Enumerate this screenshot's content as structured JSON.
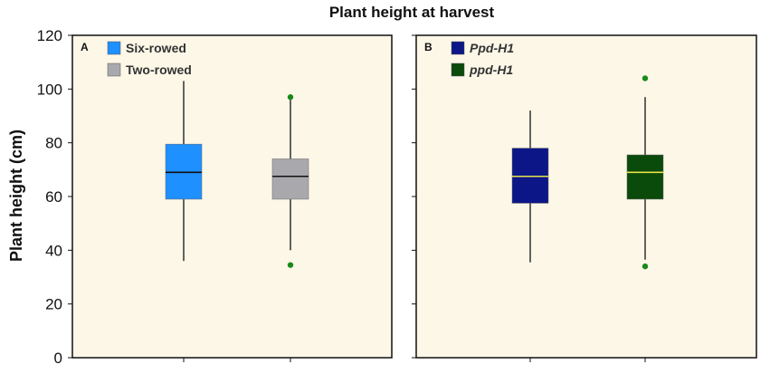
{
  "figure": {
    "title": "Plant height at harvest",
    "ylabel": "Plant height (cm)",
    "ylim": [
      0,
      120
    ],
    "yticks": [
      "0",
      "20",
      "40",
      "60",
      "80",
      "100",
      "120"
    ]
  },
  "colors": {
    "panel_background": "#fdf7e8",
    "whisker": "#111111",
    "outlier": "#1a8a1a"
  },
  "chart_data": [
    {
      "type": "box",
      "panel": "A",
      "legend_position": "top-left",
      "series": [
        {
          "name": "Six-rowed",
          "color": "#1e90ff",
          "median_color": "#111111",
          "italic": false,
          "whisker_low": 36,
          "q1": 59,
          "median": 69,
          "q3": 79.5,
          "whisker_high": 103,
          "outliers": []
        },
        {
          "name": "Two-rowed",
          "color": "#a9a9ad",
          "median_color": "#111111",
          "italic": false,
          "whisker_low": 40,
          "q1": 59,
          "median": 67.5,
          "q3": 74,
          "whisker_high": 96,
          "outliers": [
            97,
            34.5
          ]
        }
      ]
    },
    {
      "type": "box",
      "panel": "B",
      "legend_position": "top-left",
      "series": [
        {
          "name": "Ppd-H1",
          "color": "#0c1687",
          "median_color": "#e6e24a",
          "italic": true,
          "whisker_low": 35.5,
          "q1": 57.5,
          "median": 67.5,
          "q3": 78,
          "whisker_high": 92,
          "outliers": []
        },
        {
          "name": "ppd-H1",
          "color": "#0a4a0a",
          "median_color": "#e6e24a",
          "italic": true,
          "whisker_low": 36.5,
          "q1": 59,
          "median": 69,
          "q3": 75.5,
          "whisker_high": 97,
          "outliers": [
            104,
            34
          ]
        }
      ]
    }
  ]
}
